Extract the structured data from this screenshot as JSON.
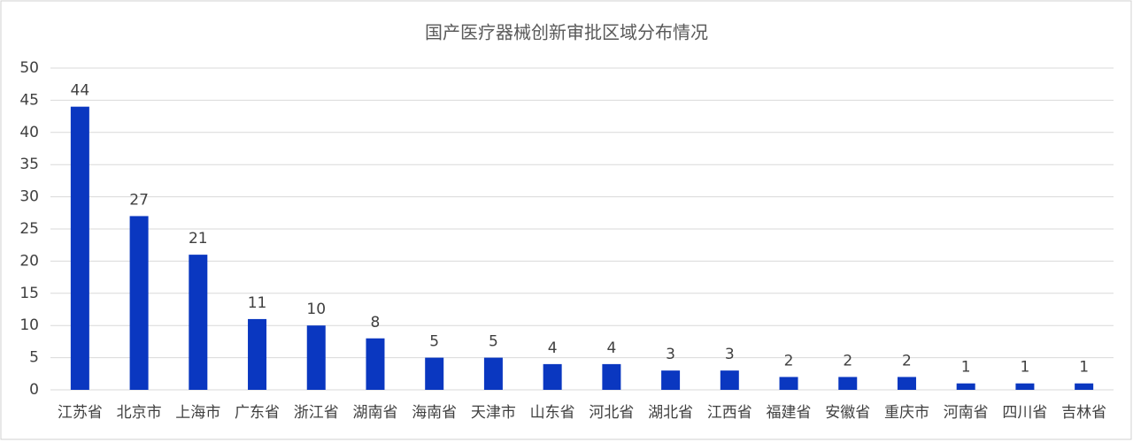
{
  "chart_data": {
    "type": "bar",
    "title": "国产医疗器械创新审批区域分布情况",
    "categories": [
      "江苏省",
      "北京市",
      "上海市",
      "广东省",
      "浙江省",
      "湖南省",
      "海南省",
      "天津市",
      "山东省",
      "河北省",
      "湖北省",
      "江西省",
      "福建省",
      "安徽省",
      "重庆市",
      "河南省",
      "四川省",
      "吉林省"
    ],
    "values": [
      44,
      27,
      21,
      11,
      10,
      8,
      5,
      5,
      4,
      4,
      3,
      3,
      2,
      2,
      2,
      1,
      1,
      1
    ],
    "color": "#0a37c0",
    "ylim": [
      0,
      50
    ],
    "yticks": [
      0,
      5,
      10,
      15,
      20,
      25,
      30,
      35,
      40,
      45,
      50
    ],
    "grid": true
  }
}
